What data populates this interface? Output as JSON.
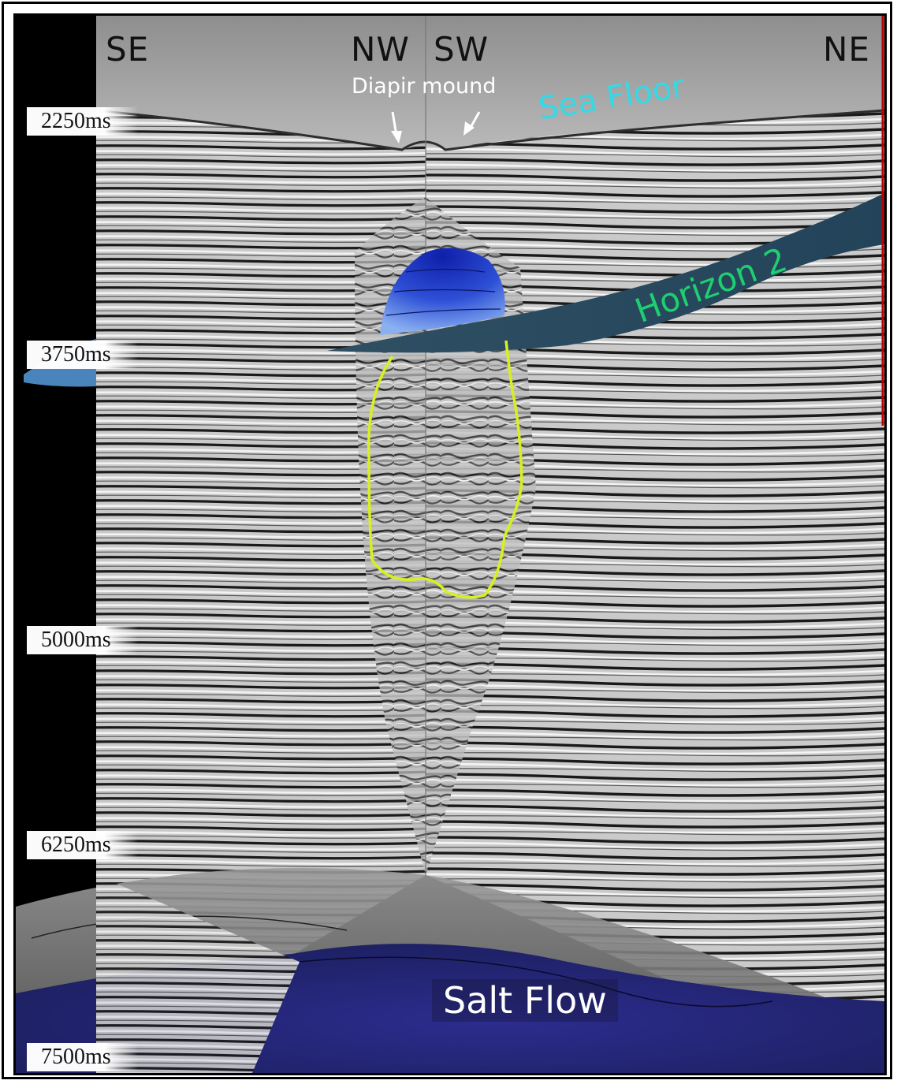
{
  "directions": [
    "SE",
    "NW",
    "SW",
    "NE"
  ],
  "annotations": {
    "diapir_mound": "Diapir mound",
    "sea_floor": "Sea Floor",
    "horizon_2": "Horizon 2",
    "salt_flow": "Salt Flow"
  },
  "time_axis": [
    "2250ms",
    "3750ms",
    "5000ms",
    "6250ms",
    "7500ms"
  ],
  "colors": {
    "sea_floor_text": "#35d9e6",
    "horizon_text": "#1ecf6f",
    "diapir_outline": "#d7f021",
    "horizon_surface": "#2b4a5e",
    "diapir_top": "#1a2fbf",
    "salt_flow_surface": "#26288a"
  }
}
